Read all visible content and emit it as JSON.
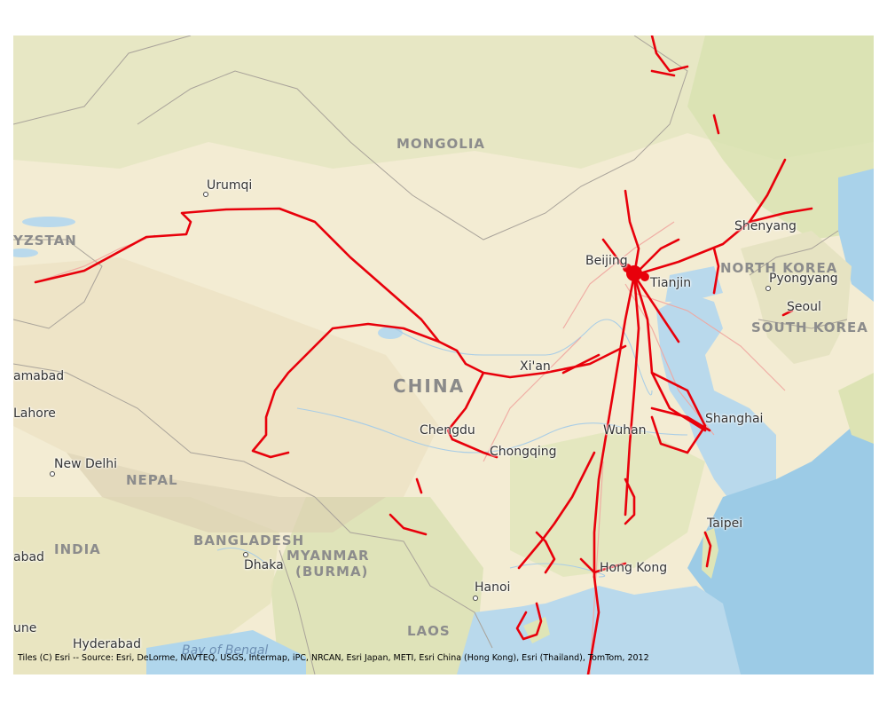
{
  "map": {
    "country_labels": {
      "mongolia": "MONGOLIA",
      "china": "CHINA",
      "north_korea": "NORTH KOREA",
      "south_korea": "SOUTH KOREA",
      "nepal": "NEPAL",
      "india": "INDIA",
      "bangladesh": "BANGLADESH",
      "myanmar": "MYANMAR",
      "burma": "(BURMA)",
      "laos": "LAOS",
      "kyrgyzstan": "YZSTAN"
    },
    "city_labels": {
      "urumqi": "Urumqi",
      "beijing": "Beijing",
      "tianjin": "Tianjin",
      "shenyang": "Shenyang",
      "pyongyang": "Pyongyang",
      "seoul": "Seoul",
      "xian": "Xi'an",
      "shanghai": "Shanghai",
      "wuhan": "Wuhan",
      "chengdu": "Chengdu",
      "chongqing": "Chongqing",
      "taipei": "Taipei",
      "hong_kong": "Hong Kong",
      "hanoi": "Hanoi",
      "dhaka": "Dhaka",
      "new_delhi": "New Delhi",
      "lahore": "Lahore",
      "islamabad": "amabad",
      "hyderabad": "Hyderabad",
      "pune": "une",
      "abad": "abad"
    },
    "water_labels": {
      "bay_of_bengal": "Bay of Bengal"
    },
    "attribution": "Tiles (C) Esri -- Source: Esri, DeLorme, NAVTEQ, USGS, Intermap, iPC, NRCAN, Esri Japan, METI, Esri China (Hong Kong), Esri (Thailand), TomTom, 2012"
  },
  "colors": {
    "land": "#f3ecd3",
    "land_green": "#d9e3b4",
    "water": "#b9d9ec",
    "deep_water": "#9ccbe6",
    "border": "#a9a39a",
    "route": "#e8000b",
    "route_faint": "#f0a7a0"
  }
}
